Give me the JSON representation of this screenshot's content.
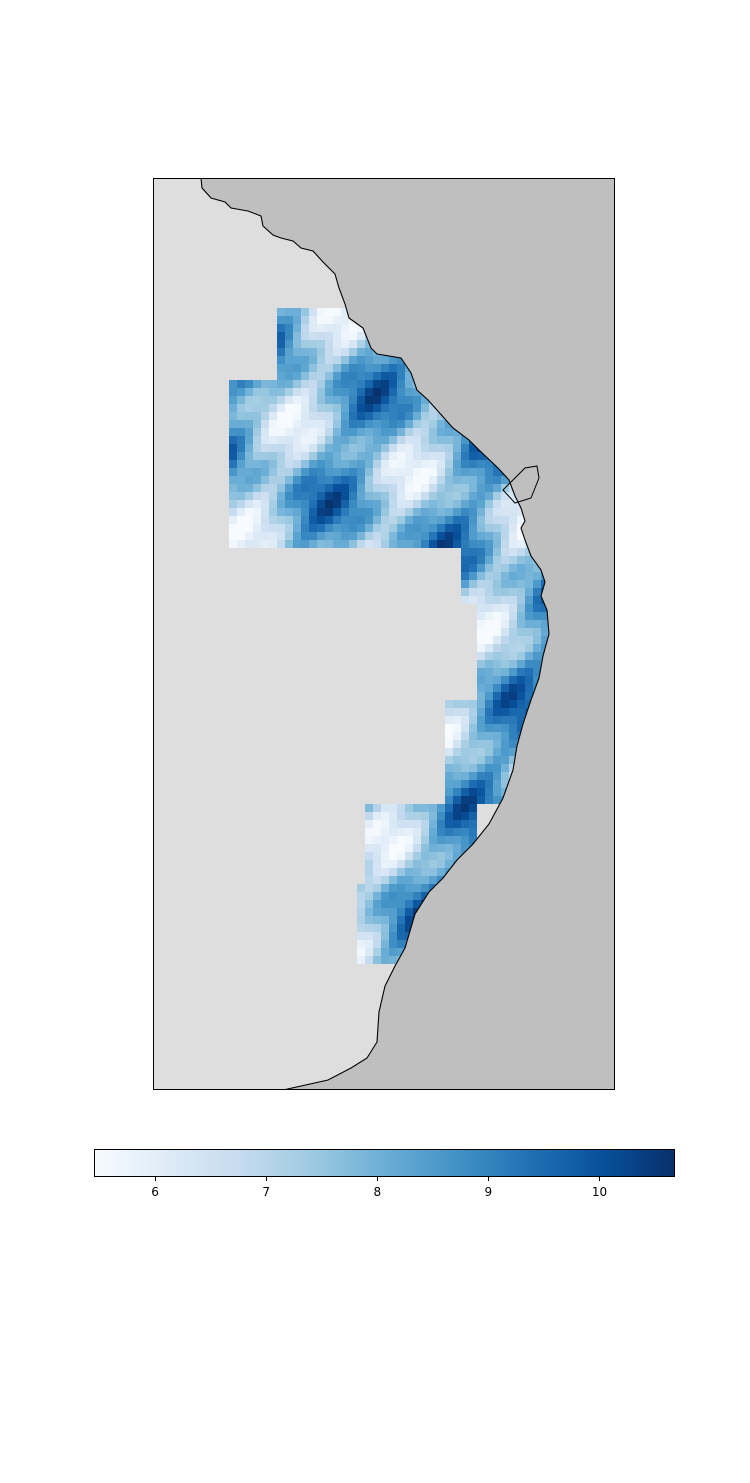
{
  "map": {
    "colors": {
      "ocean": "#bfbfbf",
      "land_background": "#dedede",
      "coastline": "#000000",
      "frame": "#000000"
    },
    "colormap": "Blues"
  },
  "colorbar": {
    "min": 5.45,
    "max": 10.68,
    "ticks": [
      "6",
      "7",
      "8",
      "9",
      "10"
    ],
    "tick_values": [
      6,
      7,
      8,
      9,
      10
    ],
    "colors": [
      "#f7fbff",
      "#deebf7",
      "#c6dbef",
      "#9ecae1",
      "#6baed6",
      "#4292c6",
      "#2171b5",
      "#08519c",
      "#08306b"
    ]
  }
}
